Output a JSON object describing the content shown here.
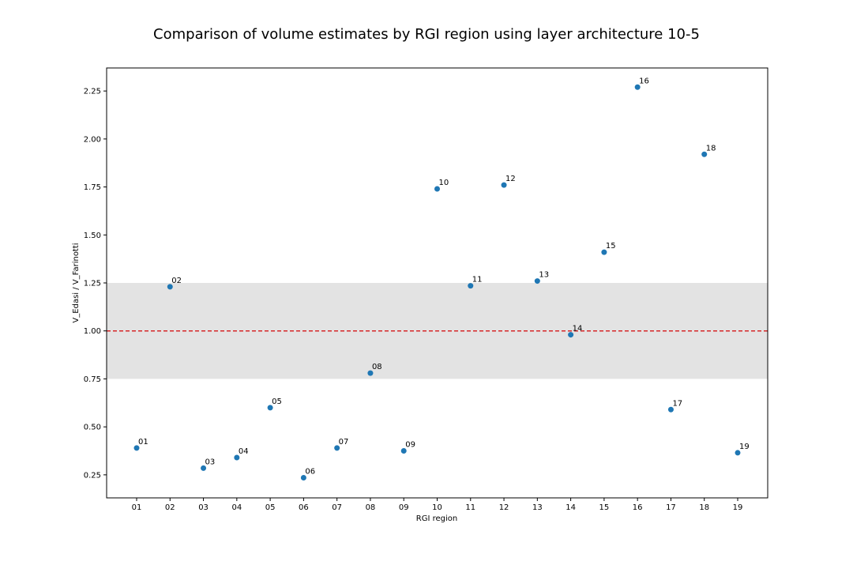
{
  "chart_data": {
    "type": "scatter",
    "title": "Comparison of volume estimates by RGI region using layer architecture 10-5",
    "xlabel": "RGI region",
    "ylabel": "V_Edasi / V_Farinotti",
    "categories": [
      "01",
      "02",
      "03",
      "04",
      "05",
      "06",
      "07",
      "08",
      "09",
      "10",
      "11",
      "12",
      "13",
      "14",
      "15",
      "16",
      "17",
      "18",
      "19"
    ],
    "values": [
      0.39,
      1.23,
      0.285,
      0.34,
      0.6,
      0.235,
      0.39,
      0.78,
      0.375,
      1.74,
      1.235,
      1.76,
      1.26,
      0.98,
      1.41,
      2.27,
      0.59,
      1.92,
      0.365
    ],
    "point_labels": [
      "01",
      "02",
      "03",
      "04",
      "05",
      "06",
      "07",
      "08",
      "09",
      "10",
      "11",
      "12",
      "13",
      "14",
      "15",
      "16",
      "17",
      "18",
      "19"
    ],
    "ylim": [
      0.13,
      2.37
    ],
    "yticks": [
      "0.25",
      "0.50",
      "0.75",
      "1.00",
      "1.25",
      "1.50",
      "1.75",
      "2.00",
      "2.25"
    ],
    "reference_line": {
      "y": 1.0,
      "color": "#d62728",
      "style": "dashed"
    },
    "shaded_band": {
      "ymin": 0.75,
      "ymax": 1.25,
      "color": "#e3e3e3"
    },
    "marker_color": "#1f77b4",
    "grid": false,
    "legend": "none"
  }
}
